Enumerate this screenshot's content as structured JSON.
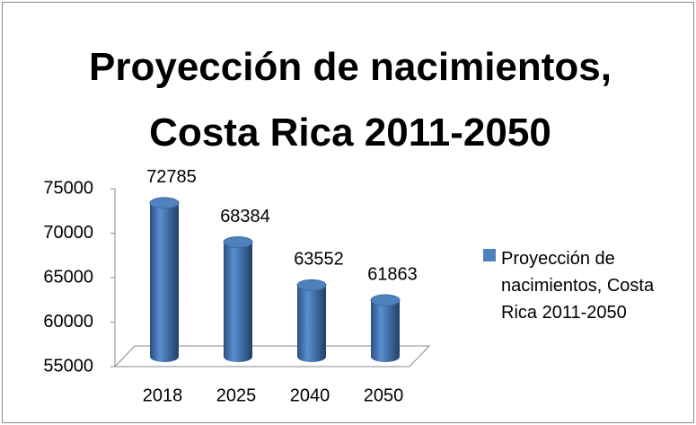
{
  "chart_data": {
    "type": "bar",
    "title": "Proyección de nacimientos, Costa Rica 2011-2050",
    "categories": [
      "2018",
      "2025",
      "2040",
      "2050"
    ],
    "series": [
      {
        "name": "Proyección de nacimientos, Costa Rica 2011-2050",
        "color": "#4f81bd",
        "values": [
          72785,
          68384,
          63552,
          61863
        ]
      }
    ],
    "ylim": [
      55000,
      75000
    ],
    "yticks": [
      55000,
      60000,
      65000,
      70000,
      75000
    ],
    "legend": "right",
    "grid": false
  }
}
